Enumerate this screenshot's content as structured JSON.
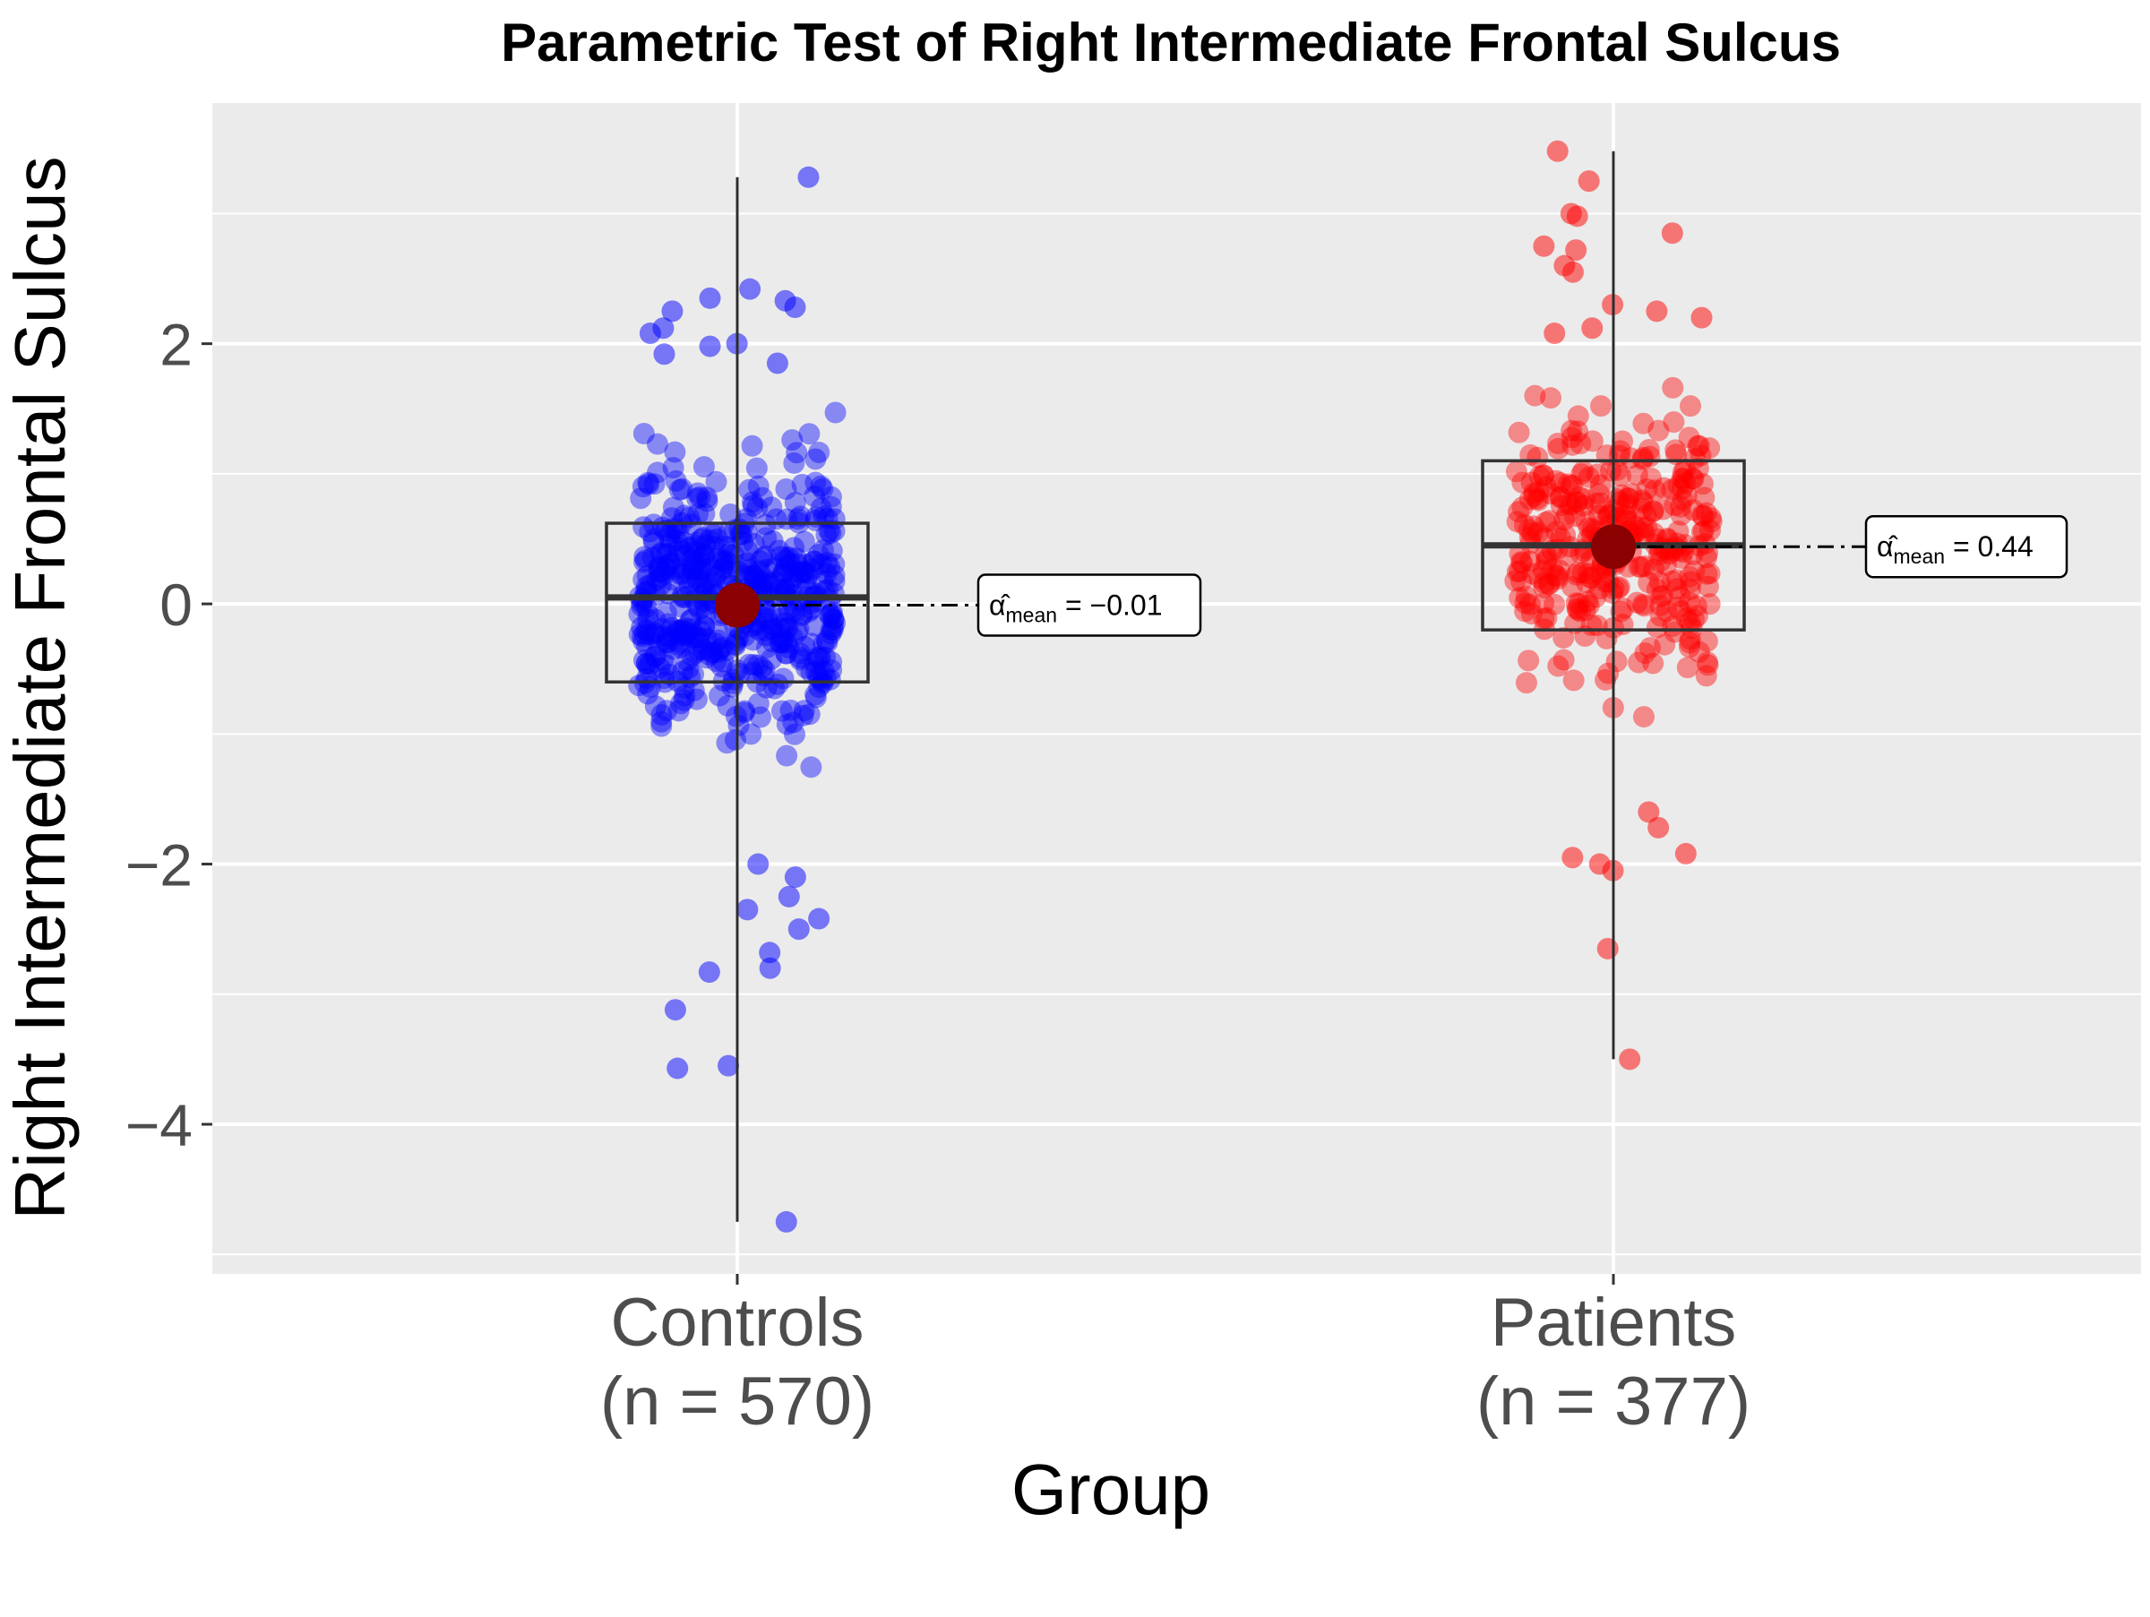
{
  "chart_data": {
    "type": "box",
    "title": "Parametric Test of Right Intermediate Frontal Sulcus",
    "xlabel": "Group",
    "ylabel": "Right Intermediate Frontal Sulcus",
    "ylim": [
      -5.15,
      3.85
    ],
    "y_ticks": [
      -4,
      -2,
      0,
      2
    ],
    "y_tick_labels": [
      "−4",
      "−2",
      "0",
      "2"
    ],
    "grid": true,
    "background_color": "#ebebeb",
    "groups": [
      {
        "name": "Controls",
        "n_label": "(n = 570)",
        "n": 570,
        "color": "#0000ff",
        "whisker_low": -4.75,
        "q1": -0.6,
        "median": 0.05,
        "q3": 0.62,
        "whisker_high": 3.28,
        "mean": -0.01,
        "mean_label": "−0.01",
        "points_shown": [
          3.28,
          2.42,
          2.35,
          2.33,
          2.28,
          2.25,
          2.12,
          2.08,
          2.0,
          1.98,
          1.92,
          1.85,
          -2.0,
          -2.1,
          -2.25,
          -2.35,
          -2.42,
          -2.5,
          -2.68,
          -2.8,
          -2.83,
          -3.12,
          -3.55,
          -3.57,
          -4.75
        ]
      },
      {
        "name": "Patients",
        "n_label": "(n = 377)",
        "n": 377,
        "color": "#ff0000",
        "whisker_low": -3.5,
        "q1": -0.2,
        "median": 0.45,
        "q3": 1.1,
        "whisker_high": 3.48,
        "mean": 0.44,
        "mean_label": "0.44",
        "points_shown": [
          3.48,
          3.25,
          3.0,
          2.98,
          2.85,
          2.75,
          2.72,
          2.6,
          2.55,
          2.3,
          2.25,
          2.2,
          2.12,
          2.08,
          -1.6,
          -1.72,
          -1.92,
          -1.95,
          -2.0,
          -2.05,
          -2.65,
          -3.5
        ]
      }
    ],
    "annotation_symbol": "α̂",
    "annotation_subscript": "mean",
    "mean_point_color": "#8b0000"
  }
}
